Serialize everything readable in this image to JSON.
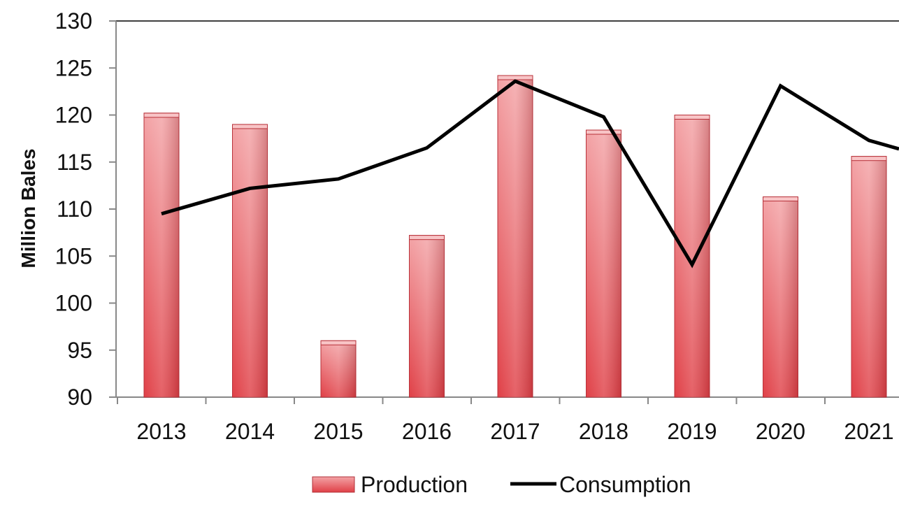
{
  "chart_data": {
    "type": "bar",
    "title": "",
    "xlabel": "",
    "ylabel": "Million Bales",
    "ylim": [
      90,
      130
    ],
    "yticks": [
      90,
      95,
      100,
      105,
      110,
      115,
      120,
      125,
      130
    ],
    "categories": [
      "2013",
      "2014",
      "2015",
      "2016",
      "2017",
      "2018",
      "2019",
      "2020",
      "2021"
    ],
    "series": [
      {
        "name": "Production",
        "kind": "bar",
        "color": "#e05a5f",
        "values": [
          120.2,
          119.0,
          96.0,
          107.2,
          124.2,
          118.4,
          120.0,
          111.3,
          115.6
        ]
      },
      {
        "name": "Consumption",
        "kind": "line",
        "color": "#000000",
        "values": [
          109.5,
          112.2,
          113.2,
          116.5,
          123.6,
          119.8,
          104.1,
          123.1,
          117.3
        ],
        "continues_to_edge_value": 116.4
      }
    ],
    "legend": "bottom-center",
    "grid": false
  }
}
